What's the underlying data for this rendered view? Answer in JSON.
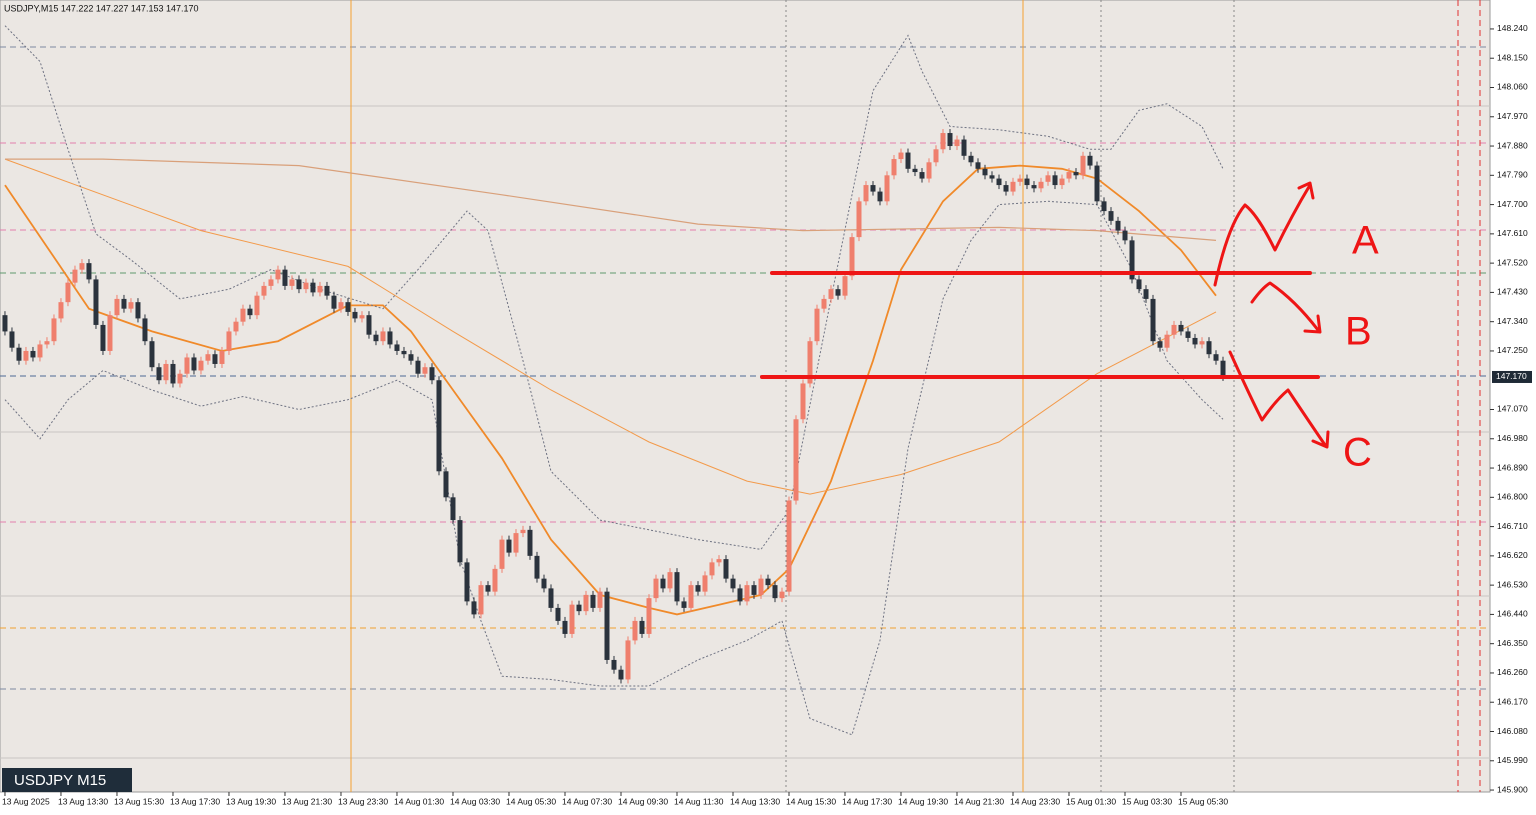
{
  "chart_data": {
    "type": "candlestick",
    "header": "USDJPY,M15  147.222 147.227 147.153 147.170",
    "watermark": "USDJPY M15",
    "bull_color": "#ef7f6d",
    "bear_color": "#2b333d",
    "xlim": [
      -0.71,
      212.14
    ],
    "ylim": [
      145.894,
      148.329
    ],
    "yticks": [
      {
        "value": 148.24,
        "label": "148.240"
      },
      {
        "value": 148.15,
        "label": "148.150"
      },
      {
        "value": 148.06,
        "label": "148.060"
      },
      {
        "value": 147.97,
        "label": "147.970"
      },
      {
        "value": 147.88,
        "label": "147.880"
      },
      {
        "value": 147.79,
        "label": "147.790"
      },
      {
        "value": 147.7,
        "label": "147.700"
      },
      {
        "value": 147.61,
        "label": "147.610"
      },
      {
        "value": 147.52,
        "label": "147.520"
      },
      {
        "value": 147.43,
        "label": "147.430"
      },
      {
        "value": 147.34,
        "label": "147.340"
      },
      {
        "value": 147.25,
        "label": "147.250"
      },
      {
        "value": 147.07,
        "label": "147.070"
      },
      {
        "value": 146.98,
        "label": "146.980"
      },
      {
        "value": 146.89,
        "label": "146.890"
      },
      {
        "value": 146.8,
        "label": "146.800"
      },
      {
        "value": 146.71,
        "label": "146.710"
      },
      {
        "value": 146.62,
        "label": "146.620"
      },
      {
        "value": 146.53,
        "label": "146.530"
      },
      {
        "value": 146.44,
        "label": "146.440"
      },
      {
        "value": 146.35,
        "label": "146.350"
      },
      {
        "value": 146.26,
        "label": "146.260"
      },
      {
        "value": 146.17,
        "label": "146.170"
      },
      {
        "value": 146.08,
        "label": "146.080"
      },
      {
        "value": 145.99,
        "label": "145.990"
      },
      {
        "value": 145.9,
        "label": "145.900"
      }
    ],
    "current_price": {
      "value": 147.17,
      "label": "147.170"
    },
    "xticks": [
      {
        "value": 0,
        "label": "13 Aug 2025"
      },
      {
        "value": 8,
        "label": "13 Aug 13:30"
      },
      {
        "value": 16,
        "label": "13 Aug 15:30"
      },
      {
        "value": 24,
        "label": "13 Aug 17:30"
      },
      {
        "value": 32,
        "label": "13 Aug 19:30"
      },
      {
        "value": 40,
        "label": "13 Aug 21:30"
      },
      {
        "value": 48,
        "label": "13 Aug 23:30"
      },
      {
        "value": 56,
        "label": "14 Aug 01:30"
      },
      {
        "value": 64,
        "label": "14 Aug 03:30"
      },
      {
        "value": 72,
        "label": "14 Aug 05:30"
      },
      {
        "value": 80,
        "label": "14 Aug 07:30"
      },
      {
        "value": 88,
        "label": "14 Aug 09:30"
      },
      {
        "value": 96,
        "label": "14 Aug 11:30"
      },
      {
        "value": 104,
        "label": "14 Aug 13:30"
      },
      {
        "value": 112,
        "label": "14 Aug 15:30"
      },
      {
        "value": 120,
        "label": "14 Aug 17:30"
      },
      {
        "value": 128,
        "label": "14 Aug 19:30"
      },
      {
        "value": 136,
        "label": "14 Aug 21:30"
      },
      {
        "value": 144,
        "label": "14 Aug 23:30"
      },
      {
        "value": 152,
        "label": "15 Aug 01:30"
      },
      {
        "value": 160,
        "label": "15 Aug 03:30"
      },
      {
        "value": 168,
        "label": "15 Aug 05:30"
      }
    ],
    "first_open": 147.36,
    "close": [
      147.31,
      147.26,
      147.22,
      147.25,
      147.23,
      147.27,
      147.28,
      147.35,
      147.4,
      147.46,
      147.5,
      147.52,
      147.47,
      147.33,
      147.25,
      147.36,
      147.41,
      147.38,
      147.4,
      147.35,
      147.28,
      147.2,
      147.16,
      147.21,
      147.15,
      147.18,
      147.23,
      147.19,
      147.22,
      147.24,
      147.21,
      147.25,
      147.31,
      147.34,
      147.38,
      147.36,
      147.42,
      147.45,
      147.47,
      147.5,
      147.45,
      147.47,
      147.44,
      147.46,
      147.43,
      147.45,
      147.42,
      147.38,
      147.4,
      147.37,
      147.35,
      147.36,
      147.3,
      147.28,
      147.31,
      147.27,
      147.25,
      147.24,
      147.22,
      147.18,
      147.2,
      147.16,
      146.88,
      146.8,
      146.73,
      146.6,
      146.48,
      146.44,
      146.53,
      146.51,
      146.58,
      146.67,
      146.63,
      146.69,
      146.7,
      146.62,
      146.55,
      146.52,
      146.46,
      146.42,
      146.38,
      146.47,
      146.45,
      146.5,
      146.46,
      146.51,
      146.3,
      146.27,
      146.24,
      146.36,
      146.42,
      146.38,
      146.49,
      146.55,
      146.52,
      146.57,
      146.48,
      146.46,
      146.53,
      146.51,
      146.56,
      146.6,
      146.61,
      146.55,
      146.52,
      146.48,
      146.53,
      146.5,
      146.55,
      146.53,
      146.49,
      146.51,
      146.79,
      147.04,
      147.15,
      147.28,
      147.38,
      147.41,
      147.44,
      147.42,
      147.48,
      147.6,
      147.71,
      147.76,
      147.74,
      147.71,
      147.79,
      147.84,
      147.86,
      147.81,
      147.8,
      147.78,
      147.83,
      147.87,
      147.92,
      147.88,
      147.9,
      147.85,
      147.83,
      147.81,
      147.79,
      147.78,
      147.76,
      147.74,
      147.77,
      147.78,
      147.76,
      147.75,
      147.77,
      147.79,
      147.76,
      147.78,
      147.8,
      147.79,
      147.85,
      147.82,
      147.71,
      147.68,
      147.65,
      147.62,
      147.59,
      147.47,
      147.44,
      147.41,
      147.28,
      147.26,
      147.3,
      147.33,
      147.31,
      147.29,
      147.27,
      147.28,
      147.24,
      147.22,
      147.17
    ],
    "lines": [
      {
        "color": "#f08a2a",
        "style": "solid",
        "width": 1.8,
        "x": [
          0,
          12,
          21,
          31,
          39,
          49,
          54,
          58,
          64,
          71,
          78,
          85,
          92,
          96,
          102,
          108,
          112,
          118,
          124,
          128,
          134,
          139,
          145,
          151,
          156,
          162,
          168,
          173
        ],
        "values": [
          147.76,
          147.38,
          147.31,
          147.25,
          147.28,
          147.39,
          147.39,
          147.31,
          147.13,
          146.92,
          146.67,
          146.5,
          146.46,
          146.44,
          146.47,
          146.5,
          146.58,
          146.85,
          147.22,
          147.5,
          147.71,
          147.81,
          147.82,
          147.81,
          147.78,
          147.68,
          147.56,
          147.42
        ]
      },
      {
        "color": "#f39a4a",
        "style": "solid",
        "width": 1,
        "x": [
          0,
          28,
          49,
          64,
          78,
          92,
          106,
          115,
          128,
          142,
          156,
          173
        ],
        "values": [
          147.84,
          147.62,
          147.51,
          147.31,
          147.13,
          146.97,
          146.85,
          146.81,
          146.87,
          146.97,
          147.18,
          147.37
        ]
      },
      {
        "color": "#d9a07a",
        "style": "solid",
        "width": 1.2,
        "x": [
          0,
          14,
          42,
          71,
          99,
          114,
          142,
          156,
          173
        ],
        "values": [
          147.84,
          147.84,
          147.82,
          147.73,
          147.64,
          147.62,
          147.63,
          147.62,
          147.59
        ]
      },
      {
        "color": "#6e7282",
        "style": "dotted",
        "width": 1,
        "x": [
          0,
          5,
          9,
          13,
          18,
          25,
          32,
          38,
          45,
          54,
          59,
          66,
          69,
          74,
          78,
          85,
          92,
          99,
          108,
          112,
          118,
          124,
          129,
          131,
          135,
          142,
          149,
          155,
          158,
          162,
          166,
          171,
          174
        ],
        "values": [
          148.25,
          148.14,
          147.87,
          147.61,
          147.53,
          147.41,
          147.44,
          147.5,
          147.44,
          147.38,
          147.5,
          147.68,
          147.62,
          147.22,
          146.88,
          146.73,
          146.7,
          146.67,
          146.64,
          146.76,
          147.41,
          148.05,
          148.22,
          148.11,
          147.94,
          147.93,
          147.91,
          147.87,
          147.87,
          147.99,
          148.01,
          147.94,
          147.81
        ]
      },
      {
        "color": "#6e7282",
        "style": "dotted",
        "width": 1,
        "x": [
          0,
          5,
          9,
          14,
          21,
          28,
          34,
          42,
          49,
          56,
          61,
          65,
          68,
          71,
          78,
          85,
          92,
          99,
          106,
          111,
          115,
          121,
          125,
          129,
          134,
          138,
          142,
          149,
          156,
          161,
          166,
          171,
          174
        ],
        "values": [
          147.1,
          146.98,
          147.1,
          147.19,
          147.13,
          147.08,
          147.11,
          147.07,
          147.1,
          147.16,
          147.1,
          146.61,
          146.42,
          146.25,
          146.24,
          146.22,
          146.22,
          146.3,
          146.36,
          146.42,
          146.12,
          146.07,
          146.36,
          146.95,
          147.41,
          147.59,
          147.7,
          147.71,
          147.7,
          147.5,
          147.22,
          147.1,
          147.04
        ]
      }
    ],
    "annotations": [
      "A",
      "B",
      "C"
    ]
  }
}
